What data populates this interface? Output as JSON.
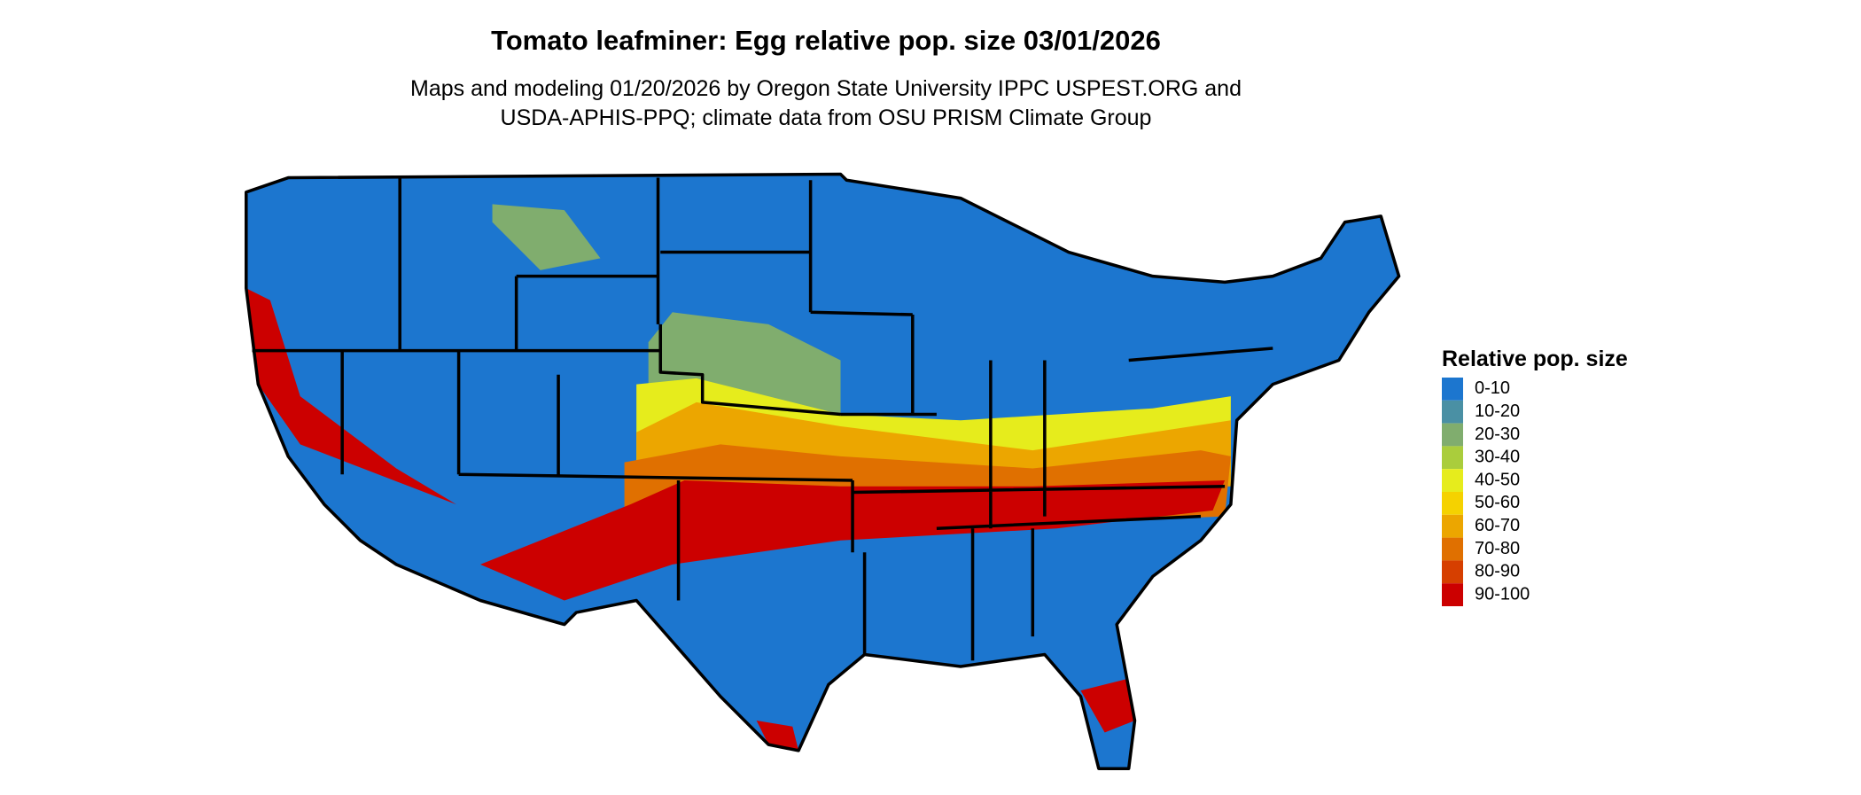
{
  "title": "Tomato leafminer: Egg relative pop. size 03/01/2026",
  "subtitle": [
    "Maps and modeling 01/20/2026 by Oregon State University IPPC USPEST.ORG and",
    "USDA-APHIS-PPQ; climate data from OSU PRISM Climate Group"
  ],
  "legend": {
    "title": "Relative pop. size",
    "items": [
      {
        "label": "0-10",
        "color": "#1c76cf"
      },
      {
        "label": "10-20",
        "color": "#4a90a4"
      },
      {
        "label": "20-30",
        "color": "#80ad6e"
      },
      {
        "label": "30-40",
        "color": "#aacd3c"
      },
      {
        "label": "40-50",
        "color": "#e6ec1c"
      },
      {
        "label": "50-60",
        "color": "#f5d200"
      },
      {
        "label": "60-70",
        "color": "#eca600"
      },
      {
        "label": "70-80",
        "color": "#e07000"
      },
      {
        "label": "80-90",
        "color": "#d63f00"
      },
      {
        "label": "90-100",
        "color": "#cc0000"
      }
    ]
  }
}
